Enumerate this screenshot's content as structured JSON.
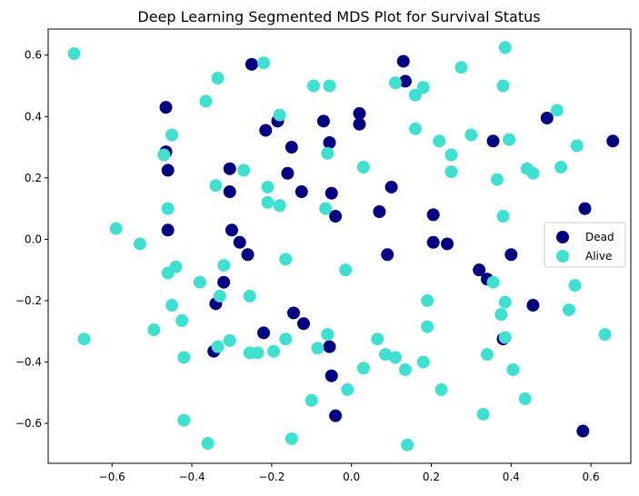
{
  "chart_data": {
    "type": "scatter",
    "title": "Deep Learning Segmented MDS Plot for Survival Status",
    "xlabel": "",
    "ylabel": "",
    "xlim": [
      -0.76,
      0.7
    ],
    "ylim": [
      -0.73,
      0.685
    ],
    "xticks": [
      -0.6,
      -0.4,
      -0.2,
      0.0,
      0.2,
      0.4,
      0.6
    ],
    "yticks": [
      -0.6,
      -0.4,
      -0.2,
      0.0,
      0.2,
      0.4,
      0.6
    ],
    "xtick_labels": [
      "−0.6",
      "−0.4",
      "−0.2",
      "0.0",
      "0.2",
      "0.4",
      "0.6"
    ],
    "ytick_labels": [
      "−0.6",
      "−0.4",
      "−0.2",
      "0.0",
      "0.2",
      "0.4",
      "0.6"
    ],
    "grid": false,
    "legend": "center-right",
    "series": [
      {
        "name": "Dead",
        "color": "#000080",
        "points": [
          [
            -0.25,
            0.57
          ],
          [
            0.13,
            0.58
          ],
          [
            0.135,
            0.515
          ],
          [
            -0.465,
            0.43
          ],
          [
            -0.465,
            0.285
          ],
          [
            -0.46,
            0.225
          ],
          [
            -0.215,
            0.355
          ],
          [
            -0.185,
            0.385
          ],
          [
            -0.15,
            0.3
          ],
          [
            -0.16,
            0.215
          ],
          [
            -0.07,
            0.385
          ],
          [
            -0.055,
            0.315
          ],
          [
            0.02,
            0.41
          ],
          [
            0.02,
            0.375
          ],
          [
            -0.305,
            0.23
          ],
          [
            -0.305,
            0.155
          ],
          [
            -0.125,
            0.155
          ],
          [
            -0.05,
            0.15
          ],
          [
            -0.04,
            0.075
          ],
          [
            0.1,
            0.17
          ],
          [
            0.07,
            0.09
          ],
          [
            0.205,
            0.08
          ],
          [
            -0.46,
            0.03
          ],
          [
            -0.3,
            0.03
          ],
          [
            -0.28,
            -0.01
          ],
          [
            -0.26,
            -0.05
          ],
          [
            -0.32,
            -0.14
          ],
          [
            -0.34,
            -0.21
          ],
          [
            0.09,
            -0.05
          ],
          [
            0.205,
            -0.01
          ],
          [
            0.24,
            -0.015
          ],
          [
            0.32,
            -0.1
          ],
          [
            0.34,
            -0.13
          ],
          [
            0.355,
            0.32
          ],
          [
            0.49,
            0.395
          ],
          [
            0.655,
            0.32
          ],
          [
            0.585,
            0.1
          ],
          [
            0.4,
            -0.05
          ],
          [
            0.455,
            -0.215
          ],
          [
            -0.145,
            -0.24
          ],
          [
            -0.12,
            -0.275
          ],
          [
            -0.22,
            -0.305
          ],
          [
            -0.055,
            -0.35
          ],
          [
            -0.345,
            -0.365
          ],
          [
            -0.05,
            -0.445
          ],
          [
            0.38,
            -0.325
          ],
          [
            -0.04,
            -0.575
          ],
          [
            0.58,
            -0.625
          ]
        ]
      },
      {
        "name": "Alive",
        "color": "#40E0D0",
        "points": [
          [
            -0.695,
            0.605
          ],
          [
            -0.22,
            0.575
          ],
          [
            -0.335,
            0.525
          ],
          [
            -0.365,
            0.45
          ],
          [
            -0.095,
            0.5
          ],
          [
            -0.055,
            0.5
          ],
          [
            0.11,
            0.51
          ],
          [
            0.16,
            0.47
          ],
          [
            0.18,
            0.495
          ],
          [
            0.275,
            0.56
          ],
          [
            0.385,
            0.625
          ],
          [
            0.38,
            0.5
          ],
          [
            0.515,
            0.42
          ],
          [
            -0.45,
            0.34
          ],
          [
            -0.47,
            0.275
          ],
          [
            -0.18,
            0.405
          ],
          [
            -0.06,
            0.28
          ],
          [
            0.16,
            0.36
          ],
          [
            0.22,
            0.32
          ],
          [
            0.25,
            0.275
          ],
          [
            0.3,
            0.34
          ],
          [
            0.395,
            0.325
          ],
          [
            0.565,
            0.305
          ],
          [
            -0.27,
            0.225
          ],
          [
            0.03,
            0.235
          ],
          [
            0.25,
            0.22
          ],
          [
            0.365,
            0.195
          ],
          [
            0.44,
            0.23
          ],
          [
            0.455,
            0.215
          ],
          [
            0.525,
            0.235
          ],
          [
            -0.34,
            0.175
          ],
          [
            -0.21,
            0.17
          ],
          [
            -0.21,
            0.12
          ],
          [
            -0.18,
            0.11
          ],
          [
            -0.065,
            0.1
          ],
          [
            -0.46,
            0.1
          ],
          [
            0.38,
            0.075
          ],
          [
            -0.59,
            0.035
          ],
          [
            -0.53,
            -0.015
          ],
          [
            -0.46,
            -0.11
          ],
          [
            -0.44,
            -0.09
          ],
          [
            -0.32,
            -0.085
          ],
          [
            -0.165,
            -0.065
          ],
          [
            -0.015,
            -0.1
          ],
          [
            0.355,
            -0.14
          ],
          [
            0.56,
            -0.15
          ],
          [
            -0.38,
            -0.14
          ],
          [
            -0.45,
            -0.215
          ],
          [
            -0.33,
            -0.185
          ],
          [
            -0.255,
            -0.185
          ],
          [
            0.19,
            -0.2
          ],
          [
            0.385,
            -0.205
          ],
          [
            0.545,
            -0.23
          ],
          [
            0.375,
            -0.245
          ],
          [
            -0.425,
            -0.265
          ],
          [
            -0.495,
            -0.295
          ],
          [
            0.19,
            -0.285
          ],
          [
            -0.06,
            -0.31
          ],
          [
            0.385,
            -0.32
          ],
          [
            0.635,
            -0.31
          ],
          [
            -0.67,
            -0.325
          ],
          [
            -0.305,
            -0.33
          ],
          [
            -0.165,
            -0.325
          ],
          [
            0.065,
            -0.325
          ],
          [
            -0.335,
            -0.35
          ],
          [
            -0.085,
            -0.355
          ],
          [
            -0.195,
            -0.365
          ],
          [
            -0.255,
            -0.37
          ],
          [
            -0.235,
            -0.37
          ],
          [
            -0.42,
            -0.385
          ],
          [
            0.085,
            -0.375
          ],
          [
            0.11,
            -0.385
          ],
          [
            0.18,
            -0.4
          ],
          [
            0.34,
            -0.375
          ],
          [
            0.03,
            -0.42
          ],
          [
            0.135,
            -0.425
          ],
          [
            0.405,
            -0.425
          ],
          [
            -0.01,
            -0.49
          ],
          [
            0.225,
            -0.49
          ],
          [
            -0.1,
            -0.525
          ],
          [
            0.435,
            -0.52
          ],
          [
            0.33,
            -0.57
          ],
          [
            -0.42,
            -0.59
          ],
          [
            -0.36,
            -0.665
          ],
          [
            -0.15,
            -0.65
          ],
          [
            0.14,
            -0.67
          ]
        ]
      }
    ]
  }
}
